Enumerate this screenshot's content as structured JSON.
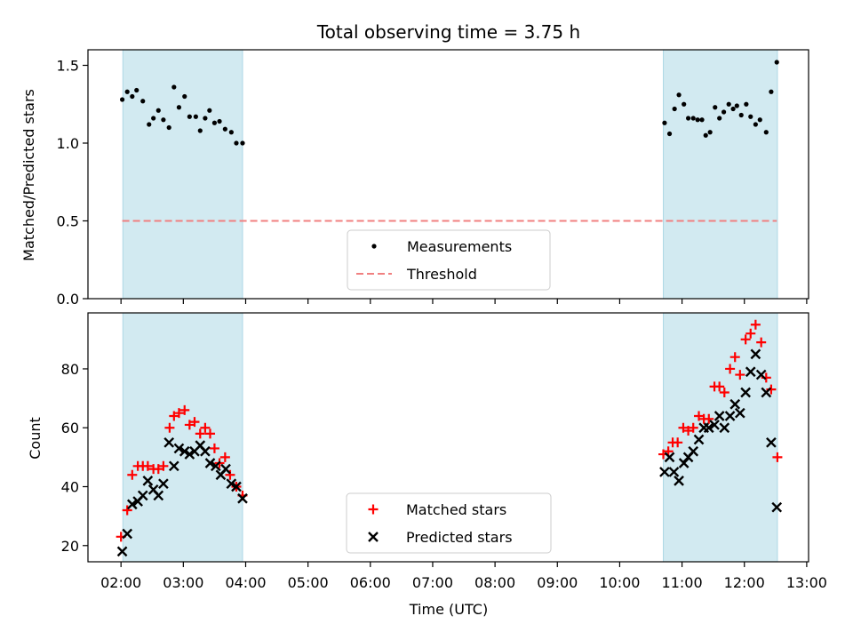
{
  "chart_data": {
    "type": "scatter",
    "title": "Total observing time = 3.75 h",
    "xlabel": "Time (UTC)",
    "x_ticks": [
      "02:00",
      "03:00",
      "04:00",
      "05:00",
      "06:00",
      "07:00",
      "08:00",
      "09:00",
      "10:00",
      "11:00",
      "12:00",
      "13:00"
    ],
    "x_range_hours": [
      1.47,
      13.03
    ],
    "shaded_intervals_hours": [
      [
        2.03,
        3.95
      ],
      [
        10.7,
        12.53
      ]
    ],
    "shade_color": "#add8e6",
    "panels": [
      {
        "ylabel": "Matched/Predicted stars",
        "ylim": [
          0,
          1.6
        ],
        "yticks": [
          0.0,
          0.5,
          1.0,
          1.5
        ],
        "ytick_labels": [
          "0.0",
          "0.5",
          "1.0",
          "1.5"
        ],
        "legend_position": "lower center",
        "series": [
          {
            "name": "Measurements",
            "marker": "dot",
            "color": "#000000",
            "points": [
              [
                2.02,
                1.28
              ],
              [
                2.1,
                1.33
              ],
              [
                2.18,
                1.3
              ],
              [
                2.25,
                1.34
              ],
              [
                2.35,
                1.27
              ],
              [
                2.45,
                1.12
              ],
              [
                2.52,
                1.16
              ],
              [
                2.6,
                1.21
              ],
              [
                2.68,
                1.15
              ],
              [
                2.77,
                1.1
              ],
              [
                2.85,
                1.36
              ],
              [
                2.93,
                1.23
              ],
              [
                3.02,
                1.3
              ],
              [
                3.1,
                1.17
              ],
              [
                3.2,
                1.17
              ],
              [
                3.27,
                1.08
              ],
              [
                3.35,
                1.16
              ],
              [
                3.42,
                1.21
              ],
              [
                3.5,
                1.13
              ],
              [
                3.58,
                1.14
              ],
              [
                3.67,
                1.09
              ],
              [
                3.77,
                1.07
              ],
              [
                3.85,
                1.0
              ],
              [
                3.95,
                1.0
              ],
              [
                10.72,
                1.13
              ],
              [
                10.8,
                1.06
              ],
              [
                10.88,
                1.22
              ],
              [
                10.95,
                1.31
              ],
              [
                11.03,
                1.25
              ],
              [
                11.1,
                1.16
              ],
              [
                11.18,
                1.16
              ],
              [
                11.25,
                1.15
              ],
              [
                11.32,
                1.15
              ],
              [
                11.38,
                1.05
              ],
              [
                11.45,
                1.07
              ],
              [
                11.53,
                1.23
              ],
              [
                11.6,
                1.16
              ],
              [
                11.67,
                1.2
              ],
              [
                11.75,
                1.25
              ],
              [
                11.82,
                1.22
              ],
              [
                11.88,
                1.24
              ],
              [
                11.95,
                1.18
              ],
              [
                12.03,
                1.25
              ],
              [
                12.1,
                1.17
              ],
              [
                12.18,
                1.12
              ],
              [
                12.25,
                1.15
              ],
              [
                12.35,
                1.07
              ],
              [
                12.43,
                1.33
              ],
              [
                12.52,
                1.52
              ]
            ]
          },
          {
            "name": "Threshold",
            "marker": "dashed-line",
            "color": "#f08080",
            "points": [
              [
                2.02,
                0.5
              ],
              [
                12.52,
                0.5
              ]
            ]
          }
        ]
      },
      {
        "ylabel": "Count",
        "ylim": [
          14.5,
          99
        ],
        "yticks": [
          20,
          40,
          60,
          80
        ],
        "ytick_labels": [
          "20",
          "40",
          "60",
          "80"
        ],
        "legend_position": "lower center",
        "series": [
          {
            "name": "Matched stars",
            "marker": "plus",
            "color": "#ff0000",
            "points": [
              [
                2.0,
                23
              ],
              [
                2.1,
                32
              ],
              [
                2.18,
                44
              ],
              [
                2.27,
                47
              ],
              [
                2.35,
                47
              ],
              [
                2.43,
                47
              ],
              [
                2.52,
                46
              ],
              [
                2.6,
                46
              ],
              [
                2.68,
                47
              ],
              [
                2.78,
                60
              ],
              [
                2.85,
                64
              ],
              [
                2.93,
                65
              ],
              [
                3.02,
                66
              ],
              [
                3.1,
                61
              ],
              [
                3.18,
                62
              ],
              [
                3.27,
                58
              ],
              [
                3.35,
                60
              ],
              [
                3.43,
                58
              ],
              [
                3.5,
                53
              ],
              [
                3.58,
                48
              ],
              [
                3.67,
                50
              ],
              [
                3.75,
                44
              ],
              [
                3.85,
                40
              ],
              [
                3.95,
                37
              ],
              [
                10.7,
                51
              ],
              [
                10.78,
                52
              ],
              [
                10.85,
                55
              ],
              [
                10.93,
                55
              ],
              [
                11.02,
                60
              ],
              [
                11.1,
                59
              ],
              [
                11.18,
                60
              ],
              [
                11.27,
                64
              ],
              [
                11.35,
                63
              ],
              [
                11.43,
                63
              ],
              [
                11.52,
                74
              ],
              [
                11.6,
                74
              ],
              [
                11.68,
                72
              ],
              [
                11.77,
                80
              ],
              [
                11.85,
                84
              ],
              [
                11.93,
                78
              ],
              [
                12.02,
                90
              ],
              [
                12.1,
                92
              ],
              [
                12.18,
                95
              ],
              [
                12.27,
                89
              ],
              [
                12.35,
                77
              ],
              [
                12.43,
                73
              ],
              [
                12.53,
                50
              ]
            ]
          },
          {
            "name": "Predicted stars",
            "marker": "x",
            "color": "#000000",
            "points": [
              [
                2.02,
                18
              ],
              [
                2.1,
                24
              ],
              [
                2.18,
                34
              ],
              [
                2.27,
                35
              ],
              [
                2.35,
                37
              ],
              [
                2.43,
                42
              ],
              [
                2.52,
                39
              ],
              [
                2.6,
                37
              ],
              [
                2.68,
                41
              ],
              [
                2.77,
                55
              ],
              [
                2.85,
                47
              ],
              [
                2.93,
                53
              ],
              [
                3.02,
                52
              ],
              [
                3.1,
                51
              ],
              [
                3.18,
                52
              ],
              [
                3.27,
                54
              ],
              [
                3.35,
                52
              ],
              [
                3.43,
                48
              ],
              [
                3.52,
                47
              ],
              [
                3.6,
                44
              ],
              [
                3.68,
                46
              ],
              [
                3.77,
                41
              ],
              [
                3.85,
                40
              ],
              [
                3.95,
                36
              ],
              [
                10.72,
                45
              ],
              [
                10.8,
                50
              ],
              [
                10.87,
                45
              ],
              [
                10.95,
                42
              ],
              [
                11.03,
                48
              ],
              [
                11.1,
                50
              ],
              [
                11.18,
                52
              ],
              [
                11.27,
                56
              ],
              [
                11.35,
                60
              ],
              [
                11.43,
                60
              ],
              [
                11.52,
                61
              ],
              [
                11.6,
                64
              ],
              [
                11.68,
                60
              ],
              [
                11.77,
                64
              ],
              [
                11.85,
                68
              ],
              [
                11.93,
                65
              ],
              [
                12.02,
                72
              ],
              [
                12.1,
                79
              ],
              [
                12.18,
                85
              ],
              [
                12.27,
                78
              ],
              [
                12.35,
                72
              ],
              [
                12.43,
                55
              ],
              [
                12.52,
                33
              ]
            ]
          }
        ]
      }
    ]
  }
}
